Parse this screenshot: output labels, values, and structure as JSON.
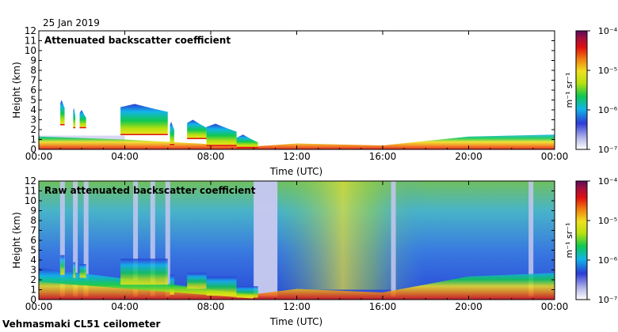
{
  "figure": {
    "date": "25 Jan 2019",
    "footer": "Vehmasmaki CL51 ceilometer"
  },
  "chart_data": [
    {
      "type": "heatmap",
      "title": "Attenuated backscatter coefficient",
      "xlabel": "Time (UTC)",
      "ylabel": "Height (km)",
      "xticks": [
        "00:00",
        "04:00",
        "08:00",
        "12:00",
        "16:00",
        "20:00",
        "00:00"
      ],
      "xlim_hours": [
        0,
        24
      ],
      "yticks": [
        0,
        1,
        2,
        3,
        4,
        5,
        6,
        7,
        8,
        9,
        10,
        11,
        12
      ],
      "ylim_km": [
        0,
        12
      ],
      "colorbar": {
        "label": "m⁻¹ sr⁻¹",
        "scale": "log",
        "ticks": [
          "10⁻⁷",
          "10⁻⁶",
          "10⁻⁵",
          "10⁻⁴"
        ],
        "range": [
          1e-07,
          0.0001
        ],
        "colors": [
          "#ffffff",
          "#b0b4e8",
          "#2c3cd6",
          "#12b4e8",
          "#10c850",
          "#b8e010",
          "#f0e020",
          "#f08010",
          "#e01010",
          "#a01040",
          "#5a0a5a"
        ]
      },
      "features": {
        "cloud_layers": [
          {
            "t_start": 1.0,
            "t_end": 1.2,
            "base_km": 2.5,
            "top_km": 5.0
          },
          {
            "t_start": 1.6,
            "t_end": 1.7,
            "base_km": 2.2,
            "top_km": 4.2
          },
          {
            "t_start": 1.9,
            "t_end": 2.2,
            "base_km": 2.2,
            "top_km": 4.0
          },
          {
            "t_start": 3.8,
            "t_end": 6.0,
            "base_km": 1.5,
            "top_km": 4.6
          },
          {
            "t_start": 6.1,
            "t_end": 6.3,
            "base_km": 0.5,
            "top_km": 2.8
          },
          {
            "t_start": 6.9,
            "t_end": 7.8,
            "base_km": 1.1,
            "top_km": 3.0
          },
          {
            "t_start": 7.8,
            "t_end": 9.2,
            "base_km": 0.4,
            "top_km": 2.6
          },
          {
            "t_start": 9.2,
            "t_end": 10.2,
            "base_km": 0.2,
            "top_km": 1.5
          }
        ],
        "boundary_layer_top_km": [
          {
            "t": 0,
            "h": 1.3
          },
          {
            "t": 4,
            "h": 1.0
          },
          {
            "t": 10,
            "h": 0.3
          },
          {
            "t": 12,
            "h": 0.6
          },
          {
            "t": 16,
            "h": 0.4
          },
          {
            "t": 20,
            "h": 1.3
          },
          {
            "t": 24,
            "h": 1.5
          }
        ]
      }
    },
    {
      "type": "heatmap",
      "title": "Raw attenuated backscatter coefficient",
      "xlabel": "Time (UTC)",
      "ylabel": "Height (km)",
      "xticks": [
        "00:00",
        "04:00",
        "08:00",
        "12:00",
        "16:00",
        "20:00",
        "00:00"
      ],
      "xlim_hours": [
        0,
        24
      ],
      "yticks": [
        0,
        1,
        2,
        3,
        4,
        5,
        6,
        7,
        8,
        9,
        10,
        11,
        12
      ],
      "ylim_km": [
        0,
        12
      ],
      "colorbar": {
        "label": "m⁻¹ sr⁻¹",
        "scale": "log",
        "ticks": [
          "10⁻⁷",
          "10⁻⁶",
          "10⁻⁵",
          "10⁻⁴"
        ],
        "range": [
          1e-07,
          0.0001
        ]
      },
      "features": {
        "noise_background": "blue-green speckle increasing with height",
        "vertical_noise_bands_hours": [
          1.1,
          1.7,
          2.2,
          4.5,
          5.3,
          6.0,
          10.3,
          10.8,
          16.5,
          22.9
        ]
      }
    }
  ]
}
